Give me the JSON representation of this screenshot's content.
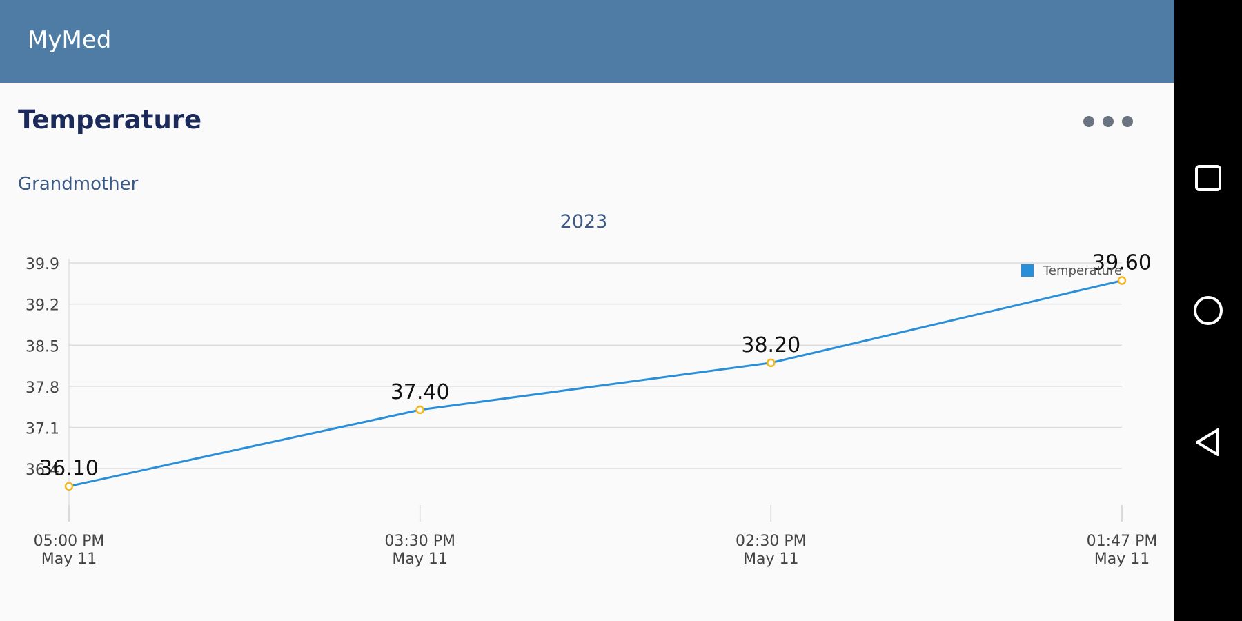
{
  "appbar": {
    "title": "MyMed"
  },
  "page": {
    "title": "Temperature",
    "subject": "Grandmother",
    "menu_icon": "more-horizontal-icon"
  },
  "chart_data": {
    "type": "line",
    "title": "2023",
    "legend": {
      "entries": [
        "Temperature"
      ],
      "placement": "top-right"
    },
    "x": [
      "05:00 PM\nMay 11",
      "03:30 PM\nMay 11",
      "02:30 PM\nMay 11",
      "01:47 PM\nMay 11"
    ],
    "series": [
      {
        "name": "Temperature",
        "values": [
          36.1,
          37.4,
          38.2,
          39.6
        ],
        "labels": [
          "36.10",
          "37.40",
          "38.20",
          "39.60"
        ]
      }
    ],
    "yticks": [
      "36.4",
      "37.1",
      "37.8",
      "38.5",
      "39.2",
      "39.9"
    ],
    "ylim": [
      35.78,
      39.9
    ],
    "grid": true,
    "colors": {
      "line": "#2a8fd8",
      "marker": "#f2b81b",
      "grid": "#dcdcdc",
      "legend": "#2a8fd8"
    }
  },
  "navigation": {
    "recents_icon": "square-recents-icon",
    "home_icon": "circle-home-icon",
    "back_icon": "triangle-back-icon"
  }
}
